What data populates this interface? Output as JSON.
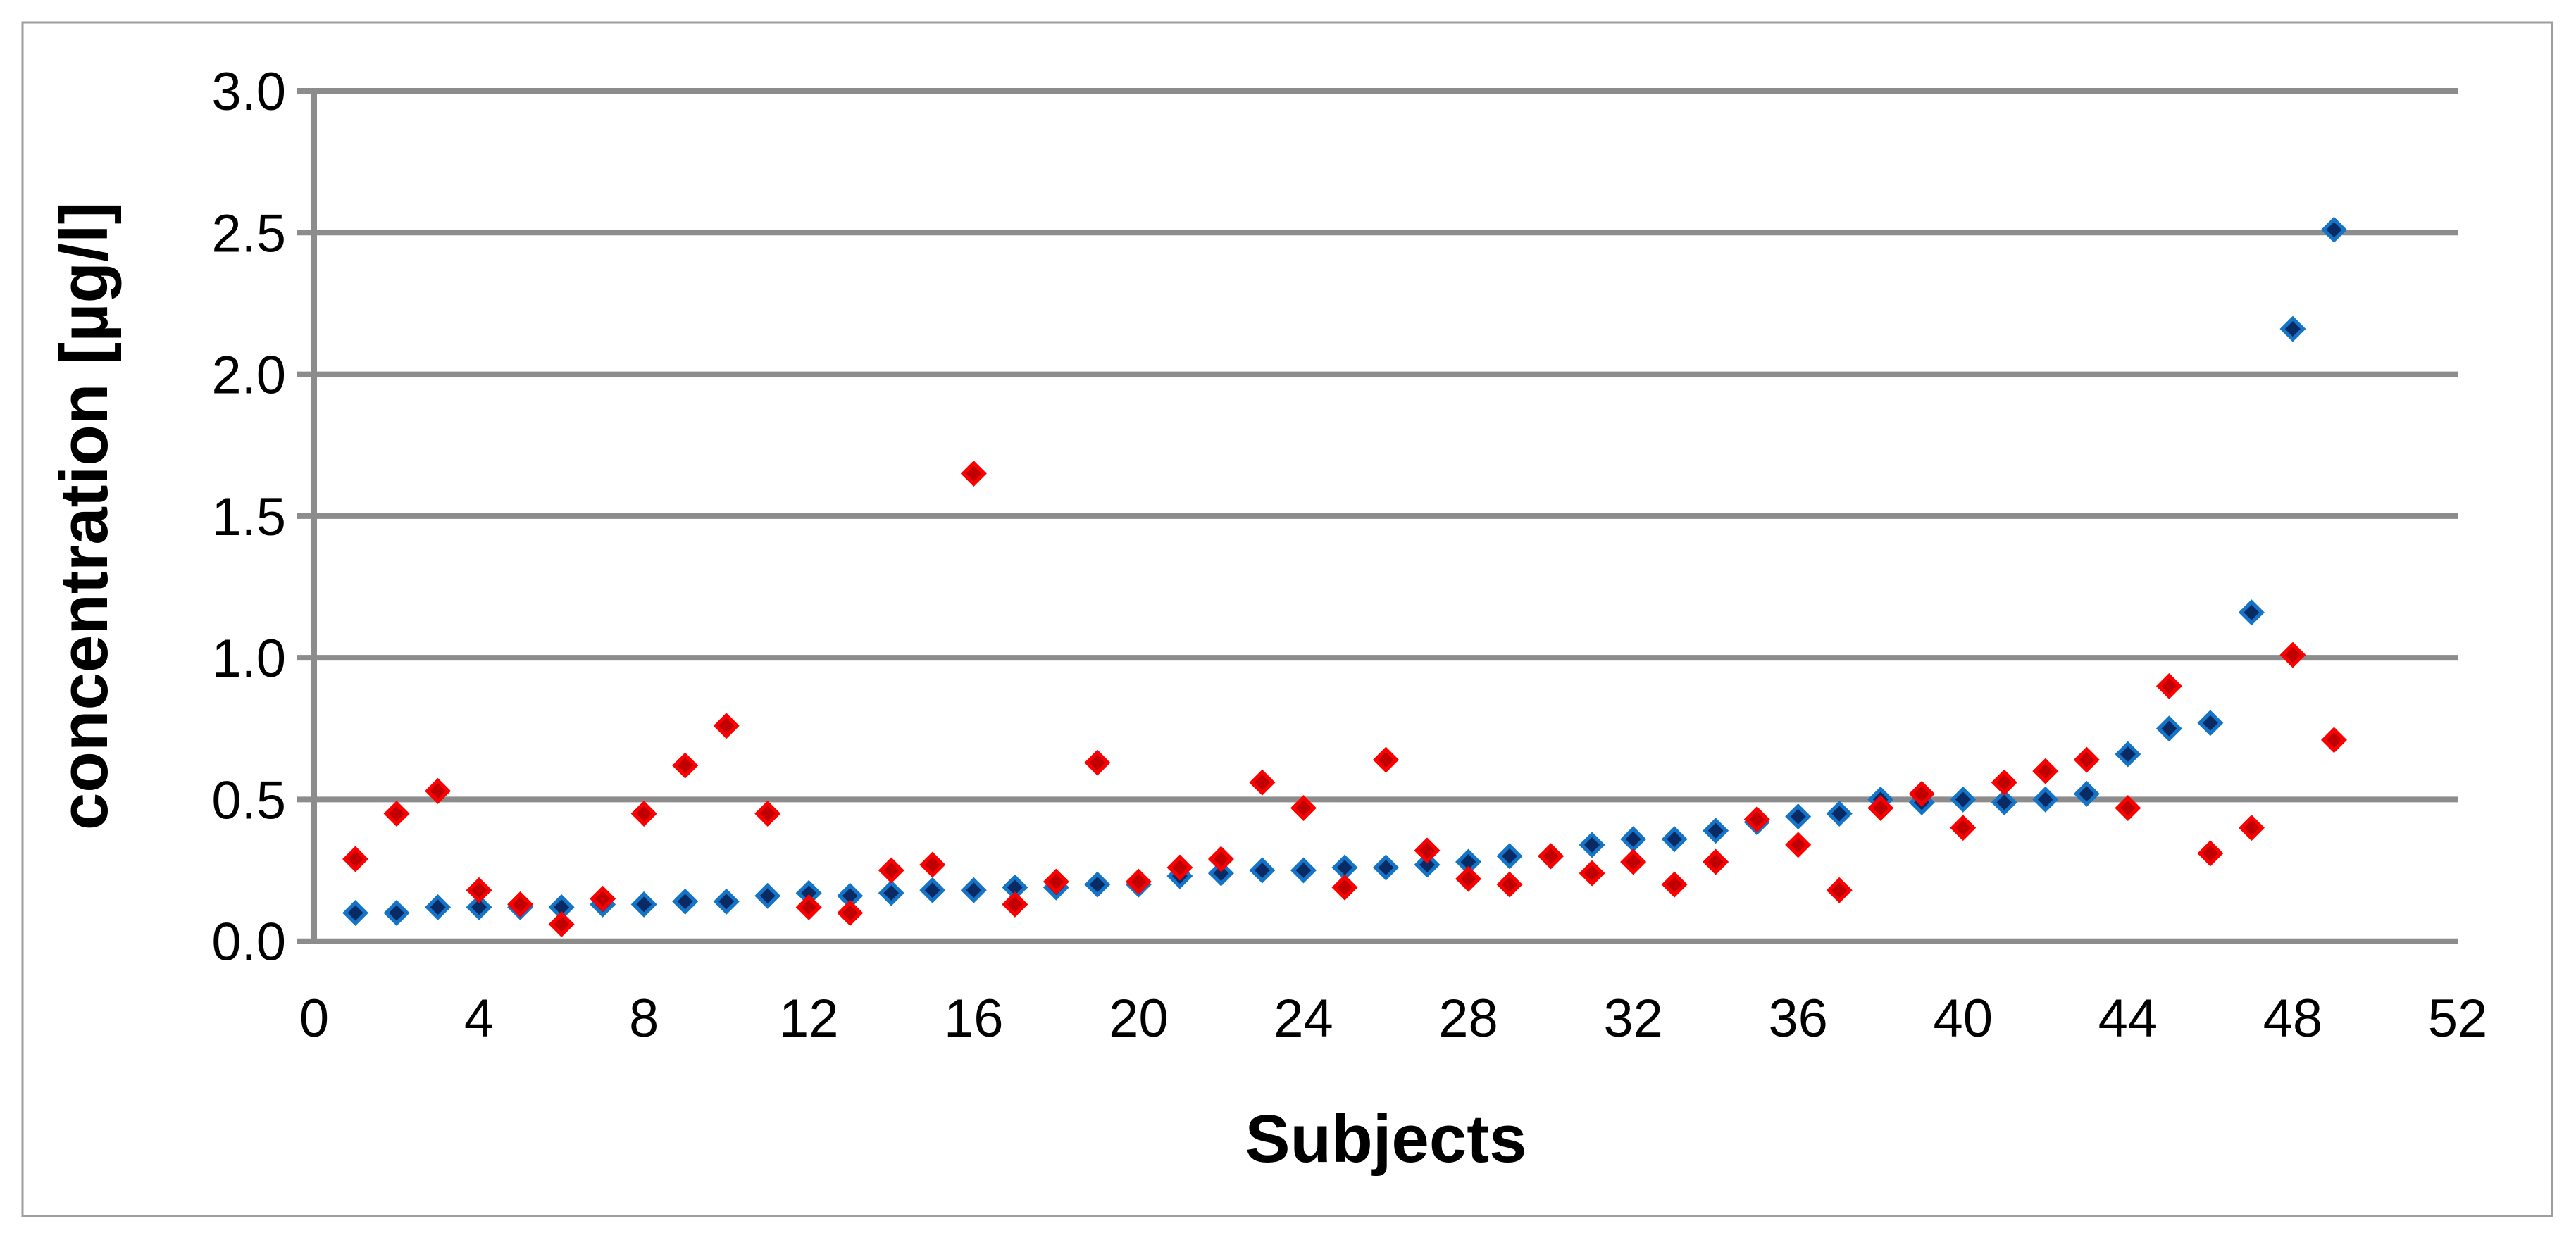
{
  "chart_data": {
    "type": "scatter",
    "xlabel": "Subjects",
    "ylabel": "concentration [µg/l]",
    "xlim": [
      0,
      52
    ],
    "ylim": [
      0.0,
      3.0
    ],
    "xticks": [
      0,
      4,
      8,
      12,
      16,
      20,
      24,
      28,
      32,
      36,
      40,
      44,
      48,
      52
    ],
    "yticks": [
      0.0,
      0.5,
      1.0,
      1.5,
      2.0,
      2.5,
      3.0
    ],
    "ytick_labels": [
      "0.0",
      "0.5",
      "1.0",
      "1.5",
      "2.0",
      "2.5",
      "3.0"
    ],
    "grid": "horizontal",
    "legend": "none",
    "colors": {
      "gridline": "#8C8C8C",
      "axis_line": "#8C8C8C",
      "chart_border": "#9E9E9E",
      "background": "#FFFFFF",
      "text": "#000000",
      "blue_marker_border": "#1374C8",
      "blue_marker_fill": "#0A2A63",
      "red_marker_border": "#FB0000",
      "red_marker_fill": "#C00000"
    },
    "x": [
      1,
      2,
      3,
      4,
      5,
      6,
      7,
      8,
      9,
      10,
      11,
      12,
      13,
      14,
      15,
      16,
      17,
      18,
      19,
      20,
      21,
      22,
      23,
      24,
      25,
      26,
      27,
      28,
      29,
      30,
      31,
      32,
      33,
      34,
      35,
      36,
      37,
      38,
      39,
      40,
      41,
      42,
      43,
      44,
      45,
      46,
      47,
      48,
      49
    ],
    "series": [
      {
        "name": "blue",
        "marker": "diamond",
        "values": [
          0.1,
          0.1,
          0.12,
          0.12,
          0.12,
          0.12,
          0.13,
          0.13,
          0.14,
          0.14,
          0.16,
          0.17,
          0.16,
          0.17,
          0.18,
          0.18,
          0.19,
          0.19,
          0.2,
          0.2,
          0.23,
          0.24,
          0.25,
          0.25,
          0.26,
          0.26,
          0.27,
          0.28,
          0.3,
          0.3,
          0.34,
          0.36,
          0.36,
          0.39,
          0.42,
          0.44,
          0.45,
          0.5,
          0.49,
          0.5,
          0.49,
          0.5,
          0.52,
          0.66,
          0.75,
          0.77,
          1.16,
          2.16,
          2.51
        ]
      },
      {
        "name": "red",
        "marker": "diamond",
        "values": [
          0.29,
          0.45,
          0.53,
          0.18,
          0.13,
          0.06,
          0.15,
          0.45,
          0.62,
          0.76,
          0.45,
          0.12,
          0.1,
          0.25,
          0.27,
          1.65,
          0.13,
          0.21,
          0.63,
          0.21,
          0.26,
          0.29,
          0.56,
          0.47,
          0.19,
          0.64,
          0.32,
          0.22,
          0.2,
          0.3,
          0.24,
          0.28,
          0.2,
          0.28,
          0.43,
          0.34,
          0.18,
          0.47,
          0.52,
          0.4,
          0.56,
          0.6,
          0.64,
          0.47,
          0.9,
          0.31,
          0.4,
          1.01,
          0.71
        ]
      }
    ]
  }
}
